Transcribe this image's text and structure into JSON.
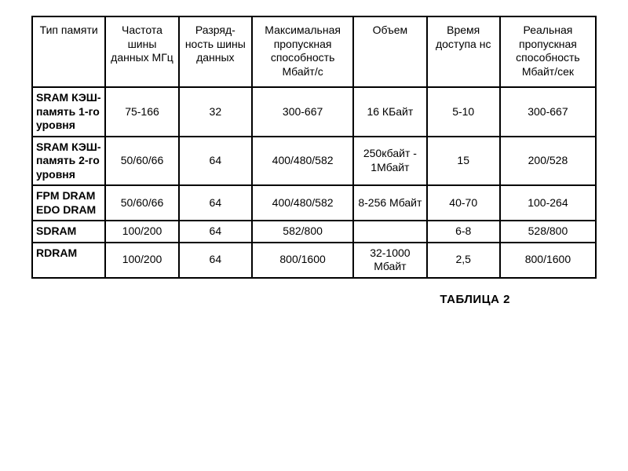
{
  "table": {
    "columns": [
      "Тип памяти",
      "Частота шины данных МГц",
      "Разряд- ность шины данных",
      "Максимальная пропускная способность Мбайт/с",
      "Объем",
      "Время доступа нс",
      "Реальная пропускная способность Мбайт/сек"
    ],
    "rows": [
      {
        "label": "SRAM КЭШ- память 1-го уровня",
        "cells": [
          "75-166",
          "32",
          "300-667",
          "16 КБайт",
          "5-10",
          "300-667"
        ]
      },
      {
        "label": "SRAM КЭШ- память 2-го уровня",
        "cells": [
          "50/60/66",
          "64",
          "400/480/582",
          "250кбайт - 1Мбайт",
          "15",
          "200/528"
        ]
      },
      {
        "label": "FPM DRAM EDO DRAM",
        "cells": [
          "50/60/66",
          "64",
          "400/480/582",
          "8-256 Мбайт",
          "40-70",
          "100-264"
        ]
      },
      {
        "label": "SDRAM",
        "cells": [
          "100/200",
          "64",
          "582/800",
          "",
          "6-8",
          "528/800"
        ]
      },
      {
        "label": "RDRAM",
        "cells": [
          "100/200",
          "64",
          "800/1600",
          "32-1000 Мбайт",
          "2,5",
          "800/1600"
        ]
      }
    ],
    "caption": "ТАБЛИЦА 2",
    "style": {
      "border_color": "#000000",
      "border_width": 2,
      "background": "#ffffff",
      "font_family": "Arial",
      "header_fontsize": 14,
      "cell_fontsize": 14,
      "rowlabel_fontweight": "bold",
      "caption_fontsize": 15
    }
  }
}
